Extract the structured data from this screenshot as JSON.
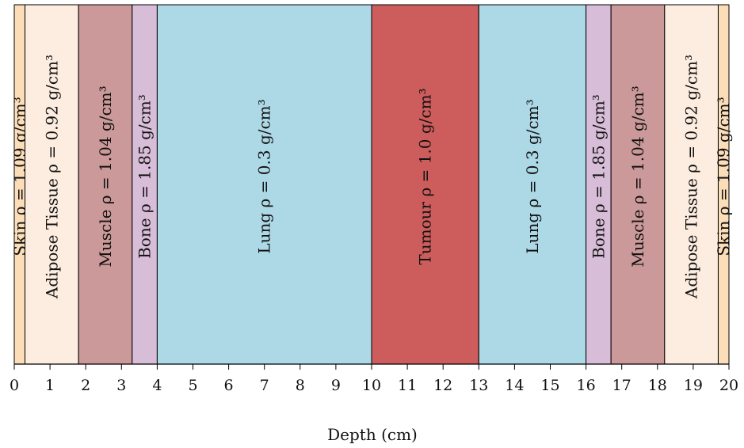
{
  "chart_data": {
    "type": "layered-bars",
    "xlabel": "Depth (cm)",
    "xlim": [
      0,
      20
    ],
    "ticks": [
      "0",
      "1",
      "2",
      "3",
      "4",
      "5",
      "6",
      "7",
      "8",
      "9",
      "10",
      "11",
      "12",
      "13",
      "14",
      "15",
      "16",
      "17",
      "18",
      "19",
      "20"
    ],
    "layers": [
      {
        "start": 0.0,
        "end": 0.3,
        "tissue": "Skin",
        "density": "1.09",
        "label": "Skin ρ = 1.09 g/cm³",
        "color": "#FBDDB8"
      },
      {
        "start": 0.3,
        "end": 1.8,
        "tissue": "Adipose Tissue",
        "density": "0.92",
        "label": "Adipose Tissue ρ = 0.92 g/cm³",
        "color": "#FDEDE0"
      },
      {
        "start": 1.8,
        "end": 3.3,
        "tissue": "Muscle",
        "density": "1.04",
        "label": "Muscle ρ = 1.04 g/cm³",
        "color": "#CB9999"
      },
      {
        "start": 3.3,
        "end": 4.0,
        "tissue": "Bone",
        "density": "1.85",
        "label": "Bone ρ = 1.85 g/cm³",
        "color": "#D8BDD8"
      },
      {
        "start": 4.0,
        "end": 10.0,
        "tissue": "Lung",
        "density": "0.3",
        "label": "Lung ρ = 0.3 g/cm³",
        "color": "#ADD8E6"
      },
      {
        "start": 10.0,
        "end": 13.0,
        "tissue": "Tumour",
        "density": "1.0",
        "label": "Tumour ρ = 1.0 g/cm³",
        "color": "#CD5C5C"
      },
      {
        "start": 13.0,
        "end": 16.0,
        "tissue": "Lung",
        "density": "0.3",
        "label": "Lung ρ = 0.3 g/cm³",
        "color": "#ADD8E6"
      },
      {
        "start": 16.0,
        "end": 16.7,
        "tissue": "Bone",
        "density": "1.85",
        "label": "Bone ρ = 1.85 g/cm³",
        "color": "#D8BDD8"
      },
      {
        "start": 16.7,
        "end": 18.2,
        "tissue": "Muscle",
        "density": "1.04",
        "label": "Muscle ρ = 1.04 g/cm³",
        "color": "#CB9999"
      },
      {
        "start": 18.2,
        "end": 19.7,
        "tissue": "Adipose Tissue",
        "density": "0.92",
        "label": "Adipose Tissue ρ = 0.92 g/cm³",
        "color": "#FDEDE0"
      },
      {
        "start": 19.7,
        "end": 20.0,
        "tissue": "Skin",
        "density": "1.09",
        "label": "Skin ρ = 1.09 g/cm³",
        "color": "#FBDDB8"
      }
    ]
  }
}
